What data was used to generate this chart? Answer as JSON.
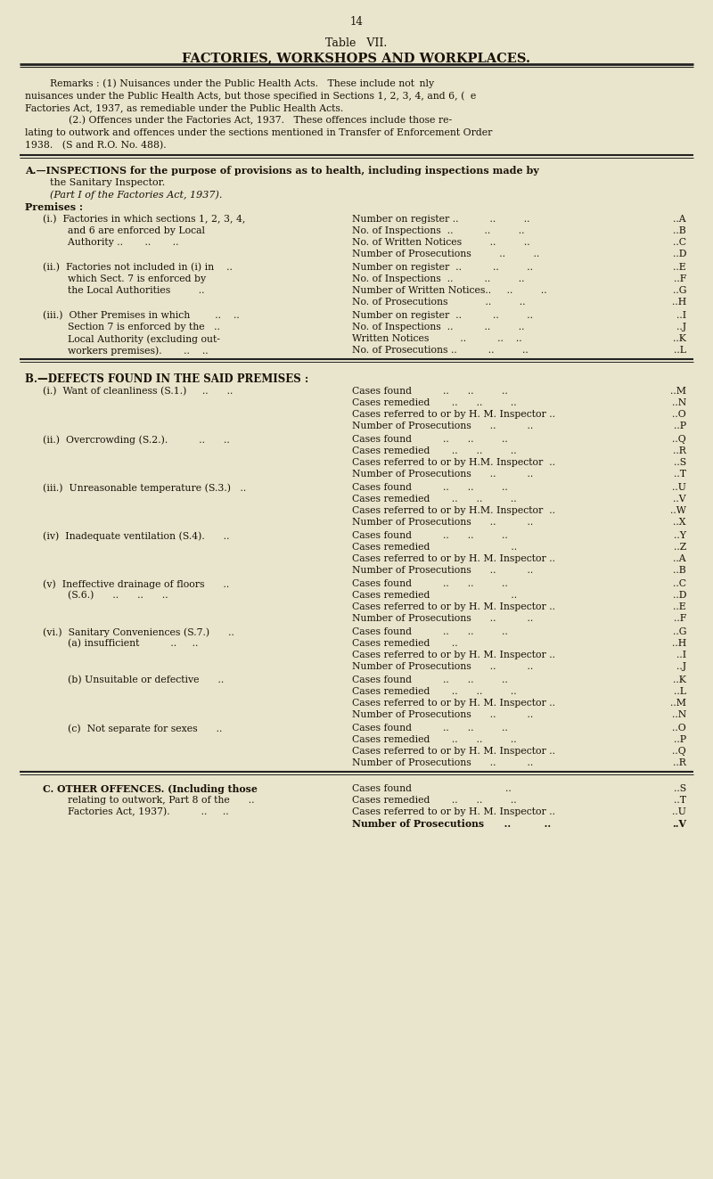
{
  "page_number": "14",
  "title_line1": "Table   VII.",
  "title_line2": "FACTORIES, WORKSHOPS AND WORKPLACES.",
  "bg_color": "#e8e5cc",
  "text_color": "#1a1108",
  "remarks": [
    "        Remarks : (1) Nuisances under the Public Health Acts.   These include not nly",
    "nuisances under the Public Health Acts, but those specified in Sections 1, 2, 3, 4, and 6, (   e",
    "Factories Act, 1937, as remediable under the Public Health Acts.",
    "              (2.) Offences under the Factories Act, 1937.   These offences include those re-",
    "lating to outwork and offences under the sections mentioned in Transfer of Enforcement Order",
    "1938.   (S and R.O. No. 488)."
  ],
  "sec_a_line1": "A.—INSPECTIONS for the purpose of provisions as to health, including inspections made by",
  "sec_a_line2": "        the Sanitary Inspector.",
  "sec_a_line3": "        (Part I of the Factories Act, 1937).",
  "premises_header": "Premises :",
  "premises": [
    {
      "left": [
        "(i.)  Factories in which sections 1, 2, 3, 4,",
        "        and 6 are enforced by Local",
        "        Authority ..       ..       .."
      ],
      "right": [
        [
          "Number on register ..          ..         ..",
          "A"
        ],
        [
          "No. of Inspections  ..          ..         ..",
          "B"
        ],
        [
          "No. of Written Notices         ..         ..",
          "C"
        ],
        [
          "Number of Prosecutions         ..         ..",
          "D"
        ]
      ]
    },
    {
      "left": [
        "(ii.)  Factories not included in (i) in    ..",
        "        which Sect. 7 is enforced by",
        "        the Local Authorities         .."
      ],
      "right": [
        [
          "Number on register  ..          ..         ..",
          "E"
        ],
        [
          "No. of Inspections  ..          ..         ..",
          "F"
        ],
        [
          "Number of Written Notices..     ..         ..",
          "G"
        ],
        [
          "No. of Prosecutions            ..         ..",
          "H"
        ]
      ]
    },
    {
      "left": [
        "(iii.)  Other Premises in which        ..    ..",
        "        Section 7 is enforced by the   ..",
        "        Local Authority (excluding out-",
        "        workers premises).       ..    .."
      ],
      "right": [
        [
          "Number on register  ..          ..         ..",
          "I"
        ],
        [
          "No. of Inspections  ..          ..         ..",
          "J"
        ],
        [
          "Written Notices          ..          ..    ..",
          "K"
        ],
        [
          "No. of Prosecutions ..          ..         ..",
          "L"
        ]
      ]
    }
  ],
  "sec_b_header": "B.—DEFECTS FOUND IN THE SAID PREMISES :",
  "defects": [
    {
      "left": [
        "(i.)  Want of cleanliness (S.1.)     ..      .."
      ],
      "right": [
        [
          "Cases found          ..      ..         ..",
          "M"
        ],
        [
          "Cases remedied       ..      ..         ..",
          "N"
        ],
        [
          "Cases referred to or by H. M. Inspector ..",
          "O"
        ],
        [
          "Number of Prosecutions      ..          ..",
          "P"
        ]
      ]
    },
    {
      "left": [
        "(ii.)  Overcrowding (S.2.).          ..      .."
      ],
      "right": [
        [
          "Cases found          ..      ..         ..",
          "Q"
        ],
        [
          "Cases remedied       ..      ..         ..",
          "R"
        ],
        [
          "Cases referred to or by H.M. Inspector  ..",
          "S"
        ],
        [
          "Number of Prosecutions      ..          ..",
          "T"
        ]
      ]
    },
    {
      "left": [
        "(iii.)  Unreasonable temperature (S.3.)   .."
      ],
      "right": [
        [
          "Cases found          ..      ..         ..",
          "U"
        ],
        [
          "Cases remedied       ..      ..         ..",
          "V"
        ],
        [
          "Cases referred to or by H.M. Inspector  ..",
          "W"
        ],
        [
          "Number of Prosecutions      ..          ..",
          "X"
        ]
      ]
    },
    {
      "left": [
        "(iv)  Inadequate ventilation (S.4).      .."
      ],
      "right": [
        [
          "Cases found          ..      ..         ..",
          "Y"
        ],
        [
          "Cases remedied                          ..",
          "Z"
        ],
        [
          "Cases referred to or by H. M. Inspector ..",
          "A"
        ],
        [
          "Number of Prosecutions      ..          ..",
          "B"
        ]
      ]
    },
    {
      "left": [
        "(v)  Ineffective drainage of floors      ..",
        "        (S.6.)      ..      ..      .."
      ],
      "right": [
        [
          "Cases found          ..      ..         ..",
          "C"
        ],
        [
          "Cases remedied                          ..",
          "D"
        ],
        [
          "Cases referred to or by H. M. Inspector ..",
          "E"
        ],
        [
          "Number of Prosecutions      ..          ..",
          "F"
        ]
      ]
    },
    {
      "left": [
        "(vi.)  Sanitary Conveniences (S.7.)      ..",
        "        (a) insufficient          ..     .."
      ],
      "right": [
        [
          "Cases found          ..      ..         ..",
          "G"
        ],
        [
          "Cases remedied       ..                  ",
          "H"
        ],
        [
          "Cases referred to or by H. M. Inspector ..",
          "I"
        ],
        [
          "Number of Prosecutions      ..          ..",
          "J"
        ]
      ]
    },
    {
      "left": [
        "        (b) Unsuitable or defective      .."
      ],
      "right": [
        [
          "Cases found          ..      ..         ..",
          "K"
        ],
        [
          "Cases remedied       ..      ..         ..",
          "L"
        ],
        [
          "Cases referred to or by H. M. Inspector ..",
          "M"
        ],
        [
          "Number of Prosecutions      ..          ..",
          "N"
        ]
      ]
    },
    {
      "left": [
        "        (c)  Not separate for sexes      .."
      ],
      "right": [
        [
          "Cases found          ..      ..         ..",
          "O"
        ],
        [
          "Cases remedied       ..      ..         ..",
          "P"
        ],
        [
          "Cases referred to or by H. M. Inspector ..",
          "Q"
        ],
        [
          "Number of Prosecutions      ..          ..",
          "R"
        ]
      ]
    }
  ],
  "sec_c_left": [
    "C. OTHER OFFENCES. (Including those",
    "        relating to outwork, Part 8 of the      ..",
    "        Factories Act, 1937).          ..     .."
  ],
  "sec_c_right": [
    [
      "Cases found                              ..",
      "S"
    ],
    [
      "Cases remedied       ..      ..         ..",
      "T"
    ],
    [
      "Cases referred to or by H. M. Inspector ..",
      "U"
    ],
    [
      "Number of Prosecutions      ..          ..",
      "V"
    ]
  ]
}
